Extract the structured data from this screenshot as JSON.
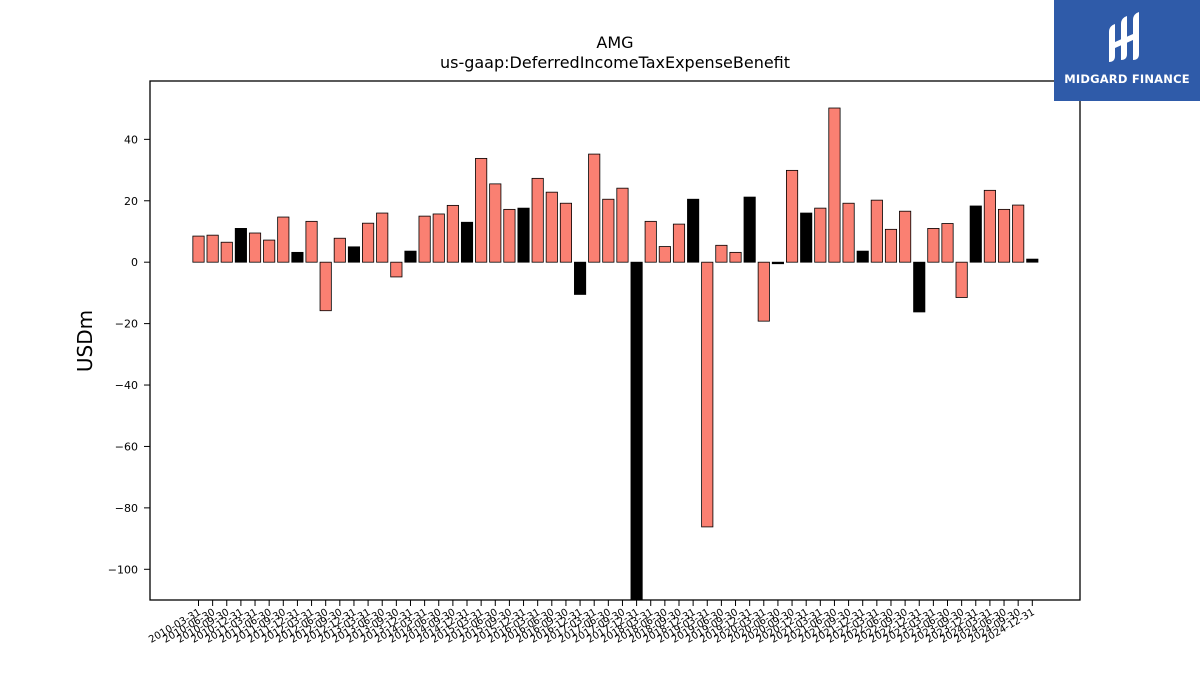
{
  "chart_data": {
    "type": "bar",
    "title": "AMG",
    "subtitle": "us-gaap:DeferredIncomeTaxExpenseBenefit",
    "xlabel": "",
    "ylabel": "USDm",
    "ylim": [
      -110,
      59
    ],
    "yticks": [
      40,
      20,
      0,
      -20,
      -40,
      -60,
      -80,
      -100
    ],
    "grid": false,
    "colors": {
      "salmon": "#fa8072",
      "black": "#000000"
    },
    "categories": [
      "2010-03-31",
      "2010-06-30",
      "2010-09-30",
      "2010-12-31",
      "2011-03-31",
      "2011-06-30",
      "2011-09-30",
      "2011-12-31",
      "2012-03-31",
      "2012-06-30",
      "2012-09-30",
      "2012-12-31",
      "2013-03-31",
      "2013-06-30",
      "2013-09-30",
      "2013-12-31",
      "2014-03-31",
      "2014-06-30",
      "2014-09-30",
      "2014-12-31",
      "2015-03-31",
      "2015-06-30",
      "2015-09-30",
      "2015-12-31",
      "2016-03-31",
      "2016-06-30",
      "2016-09-30",
      "2016-12-31",
      "2017-03-31",
      "2017-06-30",
      "2017-09-30",
      "2017-12-31",
      "2018-03-31",
      "2018-06-30",
      "2018-09-30",
      "2018-12-31",
      "2019-03-31",
      "2019-06-30",
      "2019-09-30",
      "2019-12-31",
      "2020-03-31",
      "2020-06-30",
      "2020-09-30",
      "2020-12-31",
      "2021-03-31",
      "2021-06-30",
      "2021-09-30",
      "2021-12-31",
      "2022-03-31",
      "2022-06-30",
      "2022-09-30",
      "2022-12-31",
      "2023-03-31",
      "2023-06-30",
      "2023-09-30",
      "2023-12-31",
      "2024-03-31",
      "2024-06-30",
      "2024-09-30",
      "2024-12-31"
    ],
    "values": [
      8.5,
      8.8,
      6.5,
      11.0,
      9.5,
      7.2,
      14.7,
      3.2,
      13.3,
      -15.8,
      7.8,
      5.0,
      12.7,
      16.0,
      -4.8,
      3.6,
      15.0,
      15.7,
      18.5,
      13.0,
      33.8,
      25.5,
      17.2,
      17.6,
      27.3,
      22.8,
      19.2,
      -10.5,
      35.2,
      20.5,
      24.1,
      -115.0,
      13.3,
      5.1,
      12.4,
      20.5,
      -86.2,
      5.5,
      3.2,
      21.2,
      -19.2,
      -0.5,
      29.9,
      16.0,
      17.6,
      50.2,
      19.2,
      3.6,
      20.2,
      10.7,
      16.6,
      -16.2,
      11.0,
      12.6,
      -11.5,
      18.3,
      23.4,
      17.2,
      18.6,
      1.0
    ],
    "bar_colors": [
      "salmon",
      "salmon",
      "salmon",
      "black",
      "salmon",
      "salmon",
      "salmon",
      "black",
      "salmon",
      "salmon",
      "salmon",
      "black",
      "salmon",
      "salmon",
      "salmon",
      "black",
      "salmon",
      "salmon",
      "salmon",
      "black",
      "salmon",
      "salmon",
      "salmon",
      "black",
      "salmon",
      "salmon",
      "salmon",
      "black",
      "salmon",
      "salmon",
      "salmon",
      "black",
      "salmon",
      "salmon",
      "salmon",
      "black",
      "salmon",
      "salmon",
      "salmon",
      "black",
      "salmon",
      "black",
      "salmon",
      "black",
      "salmon",
      "salmon",
      "salmon",
      "black",
      "salmon",
      "salmon",
      "salmon",
      "black",
      "salmon",
      "salmon",
      "salmon",
      "black",
      "salmon",
      "salmon",
      "salmon",
      "black"
    ]
  },
  "logo": {
    "text": "MIDGARD FINANCE",
    "icon": "midgard-logo-icon"
  }
}
